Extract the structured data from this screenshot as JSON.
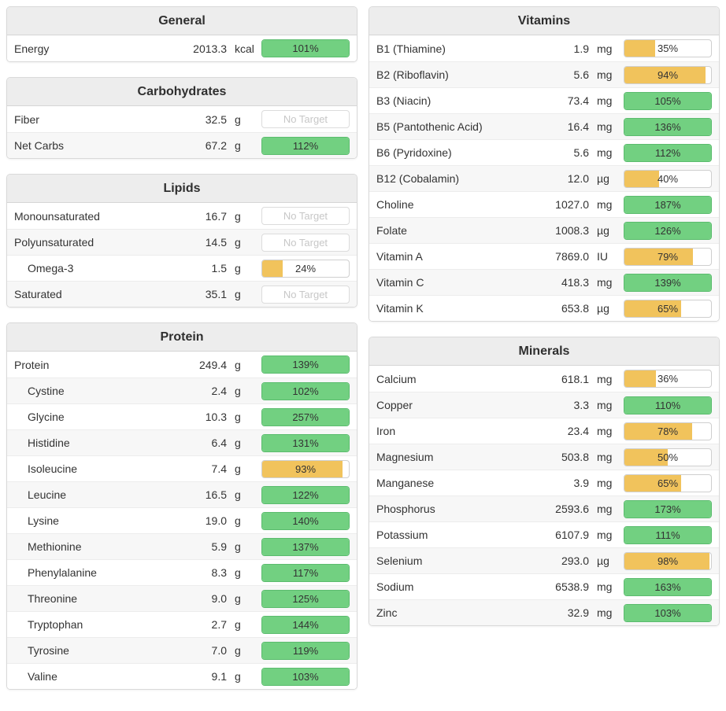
{
  "no_target_label": "No Target",
  "colors": {
    "green": {
      "fill": "#72d081",
      "border": "#5bbc6e"
    },
    "yellow": {
      "fill": "#f1c35c",
      "border": "#dcaa3f"
    }
  },
  "columns": [
    {
      "panels": [
        {
          "id": "general",
          "title": "General",
          "rows": [
            {
              "name": "Energy",
              "value": "2013.3",
              "unit": "kcal",
              "indent": false,
              "bar": {
                "type": "green",
                "percent": 101,
                "label": "101%"
              }
            }
          ]
        },
        {
          "id": "carbohydrates",
          "title": "Carbohydrates",
          "rows": [
            {
              "name": "Fiber",
              "value": "32.5",
              "unit": "g",
              "indent": false,
              "bar": {
                "type": "none",
                "label": "No Target"
              }
            },
            {
              "name": "Net Carbs",
              "value": "67.2",
              "unit": "g",
              "indent": false,
              "bar": {
                "type": "green",
                "percent": 112,
                "label": "112%"
              }
            }
          ]
        },
        {
          "id": "lipids",
          "title": "Lipids",
          "rows": [
            {
              "name": "Monounsaturated",
              "value": "16.7",
              "unit": "g",
              "indent": false,
              "bar": {
                "type": "none",
                "label": "No Target"
              }
            },
            {
              "name": "Polyunsaturated",
              "value": "14.5",
              "unit": "g",
              "indent": false,
              "bar": {
                "type": "none",
                "label": "No Target"
              }
            },
            {
              "name": "Omega-3",
              "value": "1.5",
              "unit": "g",
              "indent": true,
              "bar": {
                "type": "yellow",
                "percent": 24,
                "label": "24%"
              }
            },
            {
              "name": "Saturated",
              "value": "35.1",
              "unit": "g",
              "indent": false,
              "bar": {
                "type": "none",
                "label": "No Target"
              }
            }
          ]
        },
        {
          "id": "protein",
          "title": "Protein",
          "rows": [
            {
              "name": "Protein",
              "value": "249.4",
              "unit": "g",
              "indent": false,
              "bar": {
                "type": "green",
                "percent": 139,
                "label": "139%"
              }
            },
            {
              "name": "Cystine",
              "value": "2.4",
              "unit": "g",
              "indent": true,
              "bar": {
                "type": "green",
                "percent": 102,
                "label": "102%"
              }
            },
            {
              "name": "Glycine",
              "value": "10.3",
              "unit": "g",
              "indent": true,
              "bar": {
                "type": "green",
                "percent": 257,
                "label": "257%"
              }
            },
            {
              "name": "Histidine",
              "value": "6.4",
              "unit": "g",
              "indent": true,
              "bar": {
                "type": "green",
                "percent": 131,
                "label": "131%"
              }
            },
            {
              "name": "Isoleucine",
              "value": "7.4",
              "unit": "g",
              "indent": true,
              "bar": {
                "type": "yellow",
                "percent": 93,
                "label": "93%"
              }
            },
            {
              "name": "Leucine",
              "value": "16.5",
              "unit": "g",
              "indent": true,
              "bar": {
                "type": "green",
                "percent": 122,
                "label": "122%"
              }
            },
            {
              "name": "Lysine",
              "value": "19.0",
              "unit": "g",
              "indent": true,
              "bar": {
                "type": "green",
                "percent": 140,
                "label": "140%"
              }
            },
            {
              "name": "Methionine",
              "value": "5.9",
              "unit": "g",
              "indent": true,
              "bar": {
                "type": "green",
                "percent": 137,
                "label": "137%"
              }
            },
            {
              "name": "Phenylalanine",
              "value": "8.3",
              "unit": "g",
              "indent": true,
              "bar": {
                "type": "green",
                "percent": 117,
                "label": "117%"
              }
            },
            {
              "name": "Threonine",
              "value": "9.0",
              "unit": "g",
              "indent": true,
              "bar": {
                "type": "green",
                "percent": 125,
                "label": "125%"
              }
            },
            {
              "name": "Tryptophan",
              "value": "2.7",
              "unit": "g",
              "indent": true,
              "bar": {
                "type": "green",
                "percent": 144,
                "label": "144%"
              }
            },
            {
              "name": "Tyrosine",
              "value": "7.0",
              "unit": "g",
              "indent": true,
              "bar": {
                "type": "green",
                "percent": 119,
                "label": "119%"
              }
            },
            {
              "name": "Valine",
              "value": "9.1",
              "unit": "g",
              "indent": true,
              "bar": {
                "type": "green",
                "percent": 103,
                "label": "103%"
              }
            }
          ]
        }
      ]
    },
    {
      "panels": [
        {
          "id": "vitamins",
          "title": "Vitamins",
          "rows": [
            {
              "name": "B1 (Thiamine)",
              "value": "1.9",
              "unit": "mg",
              "indent": false,
              "bar": {
                "type": "yellow",
                "percent": 35,
                "label": "35%"
              }
            },
            {
              "name": "B2 (Riboflavin)",
              "value": "5.6",
              "unit": "mg",
              "indent": false,
              "bar": {
                "type": "yellow",
                "percent": 94,
                "label": "94%"
              }
            },
            {
              "name": "B3 (Niacin)",
              "value": "73.4",
              "unit": "mg",
              "indent": false,
              "bar": {
                "type": "green",
                "percent": 105,
                "label": "105%"
              }
            },
            {
              "name": "B5 (Pantothenic Acid)",
              "value": "16.4",
              "unit": "mg",
              "indent": false,
              "bar": {
                "type": "green",
                "percent": 136,
                "label": "136%"
              }
            },
            {
              "name": "B6 (Pyridoxine)",
              "value": "5.6",
              "unit": "mg",
              "indent": false,
              "bar": {
                "type": "green",
                "percent": 112,
                "label": "112%"
              }
            },
            {
              "name": "B12 (Cobalamin)",
              "value": "12.0",
              "unit": "µg",
              "indent": false,
              "bar": {
                "type": "yellow",
                "percent": 40,
                "label": "40%"
              }
            },
            {
              "name": "Choline",
              "value": "1027.0",
              "unit": "mg",
              "indent": false,
              "bar": {
                "type": "green",
                "percent": 187,
                "label": "187%"
              }
            },
            {
              "name": "Folate",
              "value": "1008.3",
              "unit": "µg",
              "indent": false,
              "bar": {
                "type": "green",
                "percent": 126,
                "label": "126%"
              }
            },
            {
              "name": "Vitamin A",
              "value": "7869.0",
              "unit": "IU",
              "indent": false,
              "bar": {
                "type": "yellow",
                "percent": 79,
                "label": "79%"
              }
            },
            {
              "name": "Vitamin C",
              "value": "418.3",
              "unit": "mg",
              "indent": false,
              "bar": {
                "type": "green",
                "percent": 139,
                "label": "139%"
              }
            },
            {
              "name": "Vitamin K",
              "value": "653.8",
              "unit": "µg",
              "indent": false,
              "bar": {
                "type": "yellow",
                "percent": 65,
                "label": "65%"
              }
            }
          ]
        },
        {
          "id": "minerals",
          "title": "Minerals",
          "rows": [
            {
              "name": "Calcium",
              "value": "618.1",
              "unit": "mg",
              "indent": false,
              "bar": {
                "type": "yellow",
                "percent": 36,
                "label": "36%"
              }
            },
            {
              "name": "Copper",
              "value": "3.3",
              "unit": "mg",
              "indent": false,
              "bar": {
                "type": "green",
                "percent": 110,
                "label": "110%"
              }
            },
            {
              "name": "Iron",
              "value": "23.4",
              "unit": "mg",
              "indent": false,
              "bar": {
                "type": "yellow",
                "percent": 78,
                "label": "78%"
              }
            },
            {
              "name": "Magnesium",
              "value": "503.8",
              "unit": "mg",
              "indent": false,
              "bar": {
                "type": "yellow",
                "percent": 50,
                "label": "50%"
              }
            },
            {
              "name": "Manganese",
              "value": "3.9",
              "unit": "mg",
              "indent": false,
              "bar": {
                "type": "yellow",
                "percent": 65,
                "label": "65%"
              }
            },
            {
              "name": "Phosphorus",
              "value": "2593.6",
              "unit": "mg",
              "indent": false,
              "bar": {
                "type": "green",
                "percent": 173,
                "label": "173%"
              }
            },
            {
              "name": "Potassium",
              "value": "6107.9",
              "unit": "mg",
              "indent": false,
              "bar": {
                "type": "green",
                "percent": 111,
                "label": "111%"
              }
            },
            {
              "name": "Selenium",
              "value": "293.0",
              "unit": "µg",
              "indent": false,
              "bar": {
                "type": "yellow",
                "percent": 98,
                "label": "98%"
              }
            },
            {
              "name": "Sodium",
              "value": "6538.9",
              "unit": "mg",
              "indent": false,
              "bar": {
                "type": "green",
                "percent": 163,
                "label": "163%"
              }
            },
            {
              "name": "Zinc",
              "value": "32.9",
              "unit": "mg",
              "indent": false,
              "bar": {
                "type": "green",
                "percent": 103,
                "label": "103%"
              }
            }
          ]
        }
      ]
    }
  ]
}
